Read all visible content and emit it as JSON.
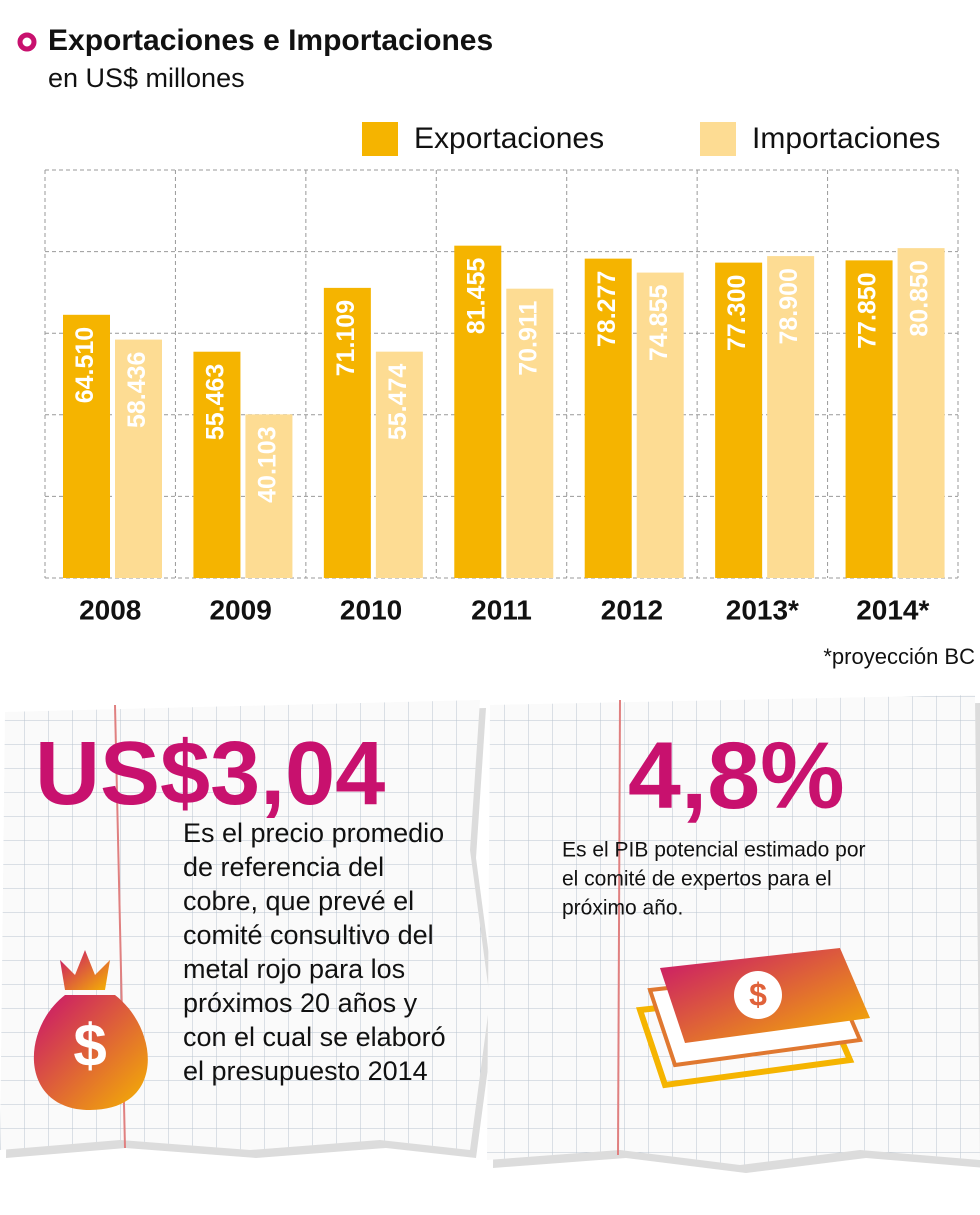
{
  "header": {
    "title": "Exportaciones e Importaciones",
    "subtitle": "en US$ millones"
  },
  "chart_data": {
    "type": "bar",
    "categories": [
      "2008",
      "2009",
      "2010",
      "2011",
      "2012",
      "2013*",
      "2014*"
    ],
    "series": [
      {
        "name": "Exportaciones",
        "color": "#f5b400",
        "values": [
          64510,
          55463,
          71109,
          81455,
          78277,
          77300,
          77850
        ],
        "value_labels": [
          "64.510",
          "55.463",
          "71.109",
          "81.455",
          "78.277",
          "77.300",
          "77.850"
        ]
      },
      {
        "name": "Importaciones",
        "color": "#fddc93",
        "values": [
          58436,
          40103,
          55474,
          70911,
          74855,
          78900,
          80850
        ],
        "value_labels": [
          "58.436",
          "40.103",
          "55.474",
          "70.911",
          "74.855",
          "78.900",
          "80.850"
        ]
      }
    ],
    "ylim": [
      0,
      100000
    ],
    "yticks": [
      0,
      20000,
      40000,
      60000,
      80000,
      100000
    ],
    "grid": true,
    "note": "*proyección BC"
  },
  "cards": [
    {
      "value": "US$3,04",
      "lines": [
        "Es el precio promedio",
        "de referencia del",
        "cobre, que prevé el",
        "comité consultivo del",
        "metal rojo para los",
        "próximos 20 años y",
        "con el cual se elaboró",
        "el presupuesto 2014"
      ]
    },
    {
      "value": "4,8%",
      "lines": [
        "Es el PIB potencial estimado por",
        "el comité de expertos para el",
        "próximo año."
      ]
    }
  ]
}
